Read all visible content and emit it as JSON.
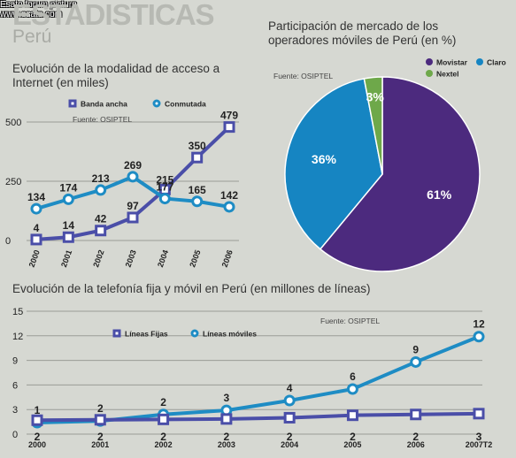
{
  "header": {
    "title": "ESTADISTICAS",
    "subtitle": "Perú",
    "watermark": [
      "Esato forum picture",
      "www.esato.com"
    ]
  },
  "chart_data": [
    {
      "type": "line",
      "title": "Evolución de la modalidad de acceso a Internet (en miles)",
      "source": "Fuente: OSIPTEL",
      "categories": [
        "2000",
        "2001",
        "2002",
        "2003",
        "2004",
        "2005",
        "2006"
      ],
      "yticks": [
        0,
        250,
        500
      ],
      "ylim": [
        0,
        500
      ],
      "series": [
        {
          "name": "Banda ancha",
          "color": "#4a4ea8",
          "marker": "square",
          "values": [
            4,
            14,
            42,
            97,
            215,
            350,
            479
          ]
        },
        {
          "name": "Conmutada",
          "color": "#1e8cc4",
          "marker": "circle",
          "values": [
            134,
            174,
            213,
            269,
            177,
            165,
            142
          ]
        }
      ]
    },
    {
      "type": "pie",
      "title": "Participación de mercado de los operadores móviles de Perú (en %)",
      "source": "Fuente: OSIPTEL",
      "slices": [
        {
          "name": "Movistar",
          "value": 61,
          "label": "61%",
          "color": "#4c2a7e"
        },
        {
          "name": "Claro",
          "value": 36,
          "label": "36%",
          "color": "#1685c2"
        },
        {
          "name": "Nextel",
          "value": 3,
          "label": "3%",
          "color": "#6ea84a"
        }
      ]
    },
    {
      "type": "line",
      "title": "Evolución de la telefonía fija y móvil en Perú (en millones de líneas)",
      "source": "Fuente: OSIPTEL",
      "categories": [
        "2000",
        "2001",
        "2002",
        "2003",
        "2004",
        "2005",
        "2006",
        "2007T2"
      ],
      "yticks": [
        0,
        3,
        6,
        9,
        12,
        15
      ],
      "ylim": [
        0,
        15
      ],
      "series": [
        {
          "name": "Líneas Fijas",
          "color": "#4a4ea8",
          "marker": "square",
          "values": [
            1.7,
            1.75,
            1.8,
            1.85,
            2.0,
            2.3,
            2.4,
            2.5
          ],
          "labels": [
            "2",
            "2",
            "2",
            "2",
            "2",
            "2",
            "2",
            "3"
          ]
        },
        {
          "name": "Líneas móviles",
          "color": "#1e8cc4",
          "marker": "circle",
          "values": [
            1.4,
            1.6,
            2.4,
            2.9,
            4.1,
            5.5,
            8.8,
            11.9
          ],
          "labels": [
            "1",
            "2",
            "2",
            "3",
            "4",
            "6",
            "9",
            "12"
          ]
        }
      ]
    }
  ]
}
